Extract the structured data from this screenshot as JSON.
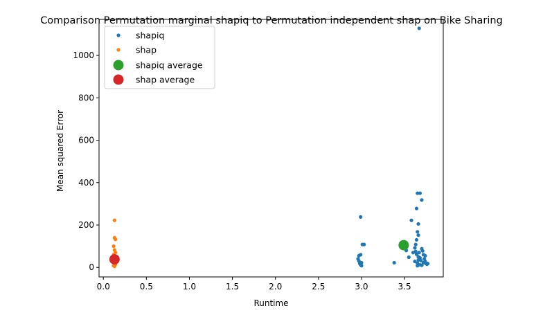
{
  "chart_data": {
    "type": "scatter",
    "title": "Comparison Permutation marginal shapiq to Permutation independent shap on Bike Sharing",
    "xlabel": "Runtime",
    "ylabel": "Mean squared Error",
    "xlim": [
      -0.05,
      3.95
    ],
    "ylim": [
      -45,
      1170
    ],
    "xticks": [
      "0.0",
      "0.5",
      "1.0",
      "1.5",
      "2.0",
      "2.5",
      "3.0",
      "3.5"
    ],
    "yticks": [
      "0",
      "200",
      "400",
      "600",
      "800",
      "1000"
    ],
    "grid": false,
    "legend_position": "top-left",
    "series": [
      {
        "name": "shapiq",
        "color": "#1f77b4",
        "marker": "small",
        "points": [
          [
            2.97,
            55
          ],
          [
            2.96,
            40
          ],
          [
            2.97,
            30
          ],
          [
            2.98,
            18
          ],
          [
            2.99,
            12
          ],
          [
            3.0,
            22
          ],
          [
            2.99,
            60
          ],
          [
            3.01,
            108
          ],
          [
            3.03,
            108
          ],
          [
            2.99,
            238
          ],
          [
            3.0,
            8
          ],
          [
            3.38,
            22
          ],
          [
            3.52,
            80
          ],
          [
            3.55,
            48
          ],
          [
            3.58,
            222
          ],
          [
            3.6,
            70
          ],
          [
            3.62,
            92
          ],
          [
            3.63,
            108
          ],
          [
            3.64,
            278
          ],
          [
            3.65,
            350
          ],
          [
            3.68,
            350
          ],
          [
            3.7,
            318
          ],
          [
            3.67,
            1128
          ],
          [
            3.66,
            205
          ],
          [
            3.65,
            168
          ],
          [
            3.66,
            152
          ],
          [
            3.64,
            130
          ],
          [
            3.63,
            75
          ],
          [
            3.64,
            62
          ],
          [
            3.66,
            50
          ],
          [
            3.68,
            45
          ],
          [
            3.7,
            88
          ],
          [
            3.71,
            78
          ],
          [
            3.72,
            60
          ],
          [
            3.73,
            40
          ],
          [
            3.74,
            28
          ],
          [
            3.75,
            18
          ],
          [
            3.76,
            15
          ],
          [
            3.77,
            18
          ],
          [
            3.65,
            8
          ],
          [
            3.68,
            12
          ],
          [
            3.7,
            10
          ],
          [
            3.62,
            28
          ],
          [
            3.66,
            35
          ],
          [
            3.72,
            22
          ],
          [
            3.67,
            70
          ],
          [
            3.65,
            20
          ],
          [
            3.69,
            32
          ],
          [
            3.74,
            55
          ]
        ]
      },
      {
        "name": "shap",
        "color": "#ff7f0e",
        "marker": "small",
        "points": [
          [
            0.13,
            222
          ],
          [
            0.13,
            140
          ],
          [
            0.14,
            132
          ],
          [
            0.12,
            100
          ],
          [
            0.13,
            82
          ],
          [
            0.12,
            60
          ],
          [
            0.13,
            48
          ],
          [
            0.14,
            38
          ],
          [
            0.12,
            28
          ],
          [
            0.13,
            20
          ],
          [
            0.14,
            14
          ],
          [
            0.12,
            8
          ],
          [
            0.13,
            5
          ],
          [
            0.14,
            70
          ]
        ]
      },
      {
        "name": "shapiq average",
        "color": "#2ca02c",
        "marker": "large",
        "points": [
          [
            3.49,
            105
          ]
        ]
      },
      {
        "name": "shap average",
        "color": "#d62728",
        "marker": "large",
        "points": [
          [
            0.13,
            38
          ]
        ]
      }
    ]
  }
}
